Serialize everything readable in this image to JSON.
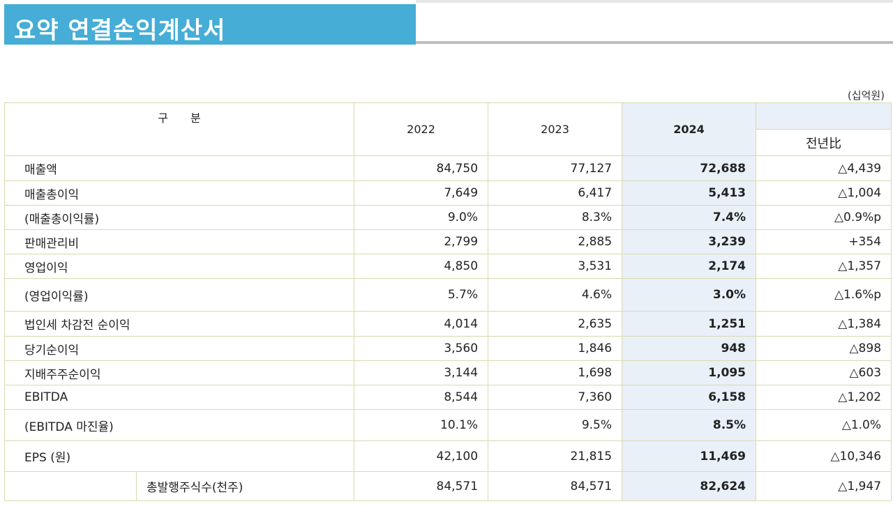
{
  "title": "요약 연결손익계산서",
  "unit": "(십억원)",
  "header": {
    "category": "구　　분",
    "y2022": "2022",
    "y2023": "2023",
    "y2024": "2024",
    "yoy": "전년比"
  },
  "rows": [
    {
      "label": "매출액",
      "v2022": "84,750",
      "v2023": "77,127",
      "v2024": "72,688",
      "yoy": "△4,439"
    },
    {
      "label": "매출총이익",
      "v2022": "7,649",
      "v2023": "6,417",
      "v2024": "5,413",
      "yoy": "△1,004"
    },
    {
      "label": "(매출총이익률)",
      "v2022": "9.0%",
      "v2023": "8.3%",
      "v2024": "7.4%",
      "yoy": "△0.9%p"
    },
    {
      "label": "판매관리비",
      "v2022": "2,799",
      "v2023": "2,885",
      "v2024": "3,239",
      "yoy": "+354"
    },
    {
      "label": "영업이익",
      "v2022": "4,850",
      "v2023": "3,531",
      "v2024": "2,174",
      "yoy": "△1,357"
    },
    {
      "label": "(영업이익률)",
      "v2022": "5.7%",
      "v2023": "4.6%",
      "v2024": "3.0%",
      "yoy": "△1.6%p"
    },
    {
      "label": "법인세 차감전 순이익",
      "v2022": "4,014",
      "v2023": "2,635",
      "v2024": "1,251",
      "yoy": "△1,384"
    },
    {
      "label": "당기순이익",
      "v2022": "3,560",
      "v2023": "1,846",
      "v2024": "948",
      "yoy": "△898"
    },
    {
      "label": "지배주주순이익",
      "v2022": "3,144",
      "v2023": "1,698",
      "v2024": "1,095",
      "yoy": "△603"
    },
    {
      "label": "EBITDA",
      "v2022": "8,544",
      "v2023": "7,360",
      "v2024": "6,158",
      "yoy": "△1,202"
    },
    {
      "label": "(EBITDA 마진율)",
      "v2022": "10.1%",
      "v2023": "9.5%",
      "v2024": "8.5%",
      "yoy": "△1.0%"
    },
    {
      "label": "EPS (원)",
      "v2022": "42,100",
      "v2023": "21,815",
      "v2024": "11,469",
      "yoy": "△10,346"
    },
    {
      "label": "총발행주식수(천주)",
      "v2022": "84,571",
      "v2023": "84,571",
      "v2024": "82,624",
      "yoy": "△1,947"
    }
  ]
}
